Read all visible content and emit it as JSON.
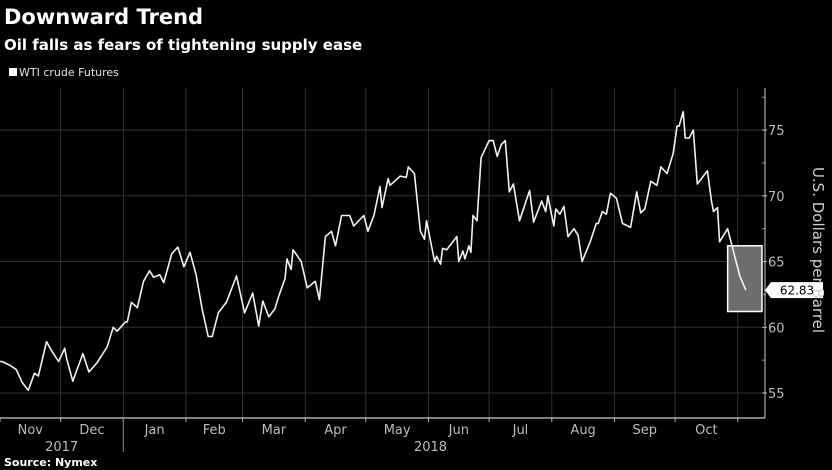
{
  "chart_data": {
    "type": "line",
    "title": "Downward Trend",
    "subtitle": "Oil falls as fears of tightening supply ease",
    "source": "Source: Nymex",
    "ylabel": "U.S. Dollars per Barrel",
    "xlabel": "",
    "ylim": [
      53.1,
      78.2
    ],
    "xlim": [
      "2017-11-01",
      "2018-11-13"
    ],
    "y_ticks": [
      55,
      60,
      65,
      70,
      75
    ],
    "y_axis_side": "right",
    "grid": true,
    "legend_placement": "top-left",
    "x_month_labels": [
      "Nov",
      "Dec",
      "Jan",
      "Feb",
      "Mar",
      "Apr",
      "May",
      "Jun",
      "Jul",
      "Aug",
      "Sep",
      "Oct"
    ],
    "x_year_labels": [
      "2017",
      "2018"
    ],
    "colors": {
      "background": "#000000",
      "line": "#ffffff",
      "grid": "#333333",
      "highlight": "#6e6e6e"
    },
    "last_value_label": "62.83",
    "highlight": {
      "x": [
        "2018-10-27",
        "2018-11-13"
      ],
      "y": [
        61.2,
        66.2
      ]
    },
    "series": [
      {
        "name": "WTI crude Futures",
        "x": [
          "2017-11-01",
          "2017-11-02",
          "2017-11-06",
          "2017-11-09",
          "2017-11-12",
          "2017-11-15",
          "2017-11-18",
          "2017-11-20",
          "2017-11-24",
          "2017-11-27",
          "2017-11-30",
          "2017-12-03",
          "2017-12-04",
          "2017-12-07",
          "2017-12-12",
          "2017-12-15",
          "2017-12-19",
          "2017-12-24",
          "2017-12-27",
          "2017-12-29",
          "2018-01-02",
          "2018-01-03",
          "2018-01-05",
          "2018-01-08",
          "2018-01-11",
          "2018-01-14",
          "2018-01-16",
          "2018-01-19",
          "2018-01-21",
          "2018-01-25",
          "2018-01-28",
          "2018-01-31",
          "2018-02-03",
          "2018-02-06",
          "2018-02-09",
          "2018-02-12",
          "2018-02-14",
          "2018-02-17",
          "2018-02-21",
          "2018-02-26",
          "2018-03-02",
          "2018-03-06",
          "2018-03-09",
          "2018-03-11",
          "2018-03-14",
          "2018-03-17",
          "2018-03-19",
          "2018-03-22",
          "2018-03-23",
          "2018-03-25",
          "2018-03-26",
          "2018-03-30",
          "2018-04-02",
          "2018-04-06",
          "2018-04-08",
          "2018-04-11",
          "2018-04-14",
          "2018-04-16",
          "2018-04-19",
          "2018-04-23",
          "2018-04-25",
          "2018-04-30",
          "2018-05-02",
          "2018-05-05",
          "2018-05-08",
          "2018-05-09",
          "2018-05-12",
          "2018-05-13",
          "2018-05-18",
          "2018-05-21",
          "2018-05-22",
          "2018-05-25",
          "2018-05-28",
          "2018-05-30",
          "2018-05-31",
          "2018-06-04",
          "2018-06-05",
          "2018-06-07",
          "2018-06-08",
          "2018-06-10",
          "2018-06-15",
          "2018-06-16",
          "2018-06-18",
          "2018-06-19",
          "2018-06-21",
          "2018-06-22",
          "2018-06-23",
          "2018-06-25",
          "2018-06-27",
          "2018-07-01",
          "2018-07-03",
          "2018-07-05",
          "2018-07-07",
          "2018-07-09",
          "2018-07-11",
          "2018-07-13",
          "2018-07-16",
          "2018-07-21",
          "2018-07-23",
          "2018-07-27",
          "2018-07-29",
          "2018-07-30",
          "2018-08-02",
          "2018-08-03",
          "2018-08-05",
          "2018-08-07",
          "2018-08-09",
          "2018-08-12",
          "2018-08-14",
          "2018-08-16",
          "2018-08-20",
          "2018-08-23",
          "2018-08-24",
          "2018-08-26",
          "2018-08-28",
          "2018-08-30",
          "2018-09-02",
          "2018-09-05",
          "2018-09-09",
          "2018-09-12",
          "2018-09-14",
          "2018-09-16",
          "2018-09-19",
          "2018-09-22",
          "2018-09-24",
          "2018-09-27",
          "2018-09-30",
          "2018-10-02",
          "2018-10-03",
          "2018-10-05",
          "2018-10-06",
          "2018-10-08",
          "2018-10-10",
          "2018-10-12",
          "2018-10-17",
          "2018-10-19",
          "2018-10-20",
          "2018-10-22",
          "2018-10-23",
          "2018-10-27",
          "2018-11-02",
          "2018-11-05"
        ],
        "values": [
          57.4,
          57.4,
          57.1,
          56.8,
          55.8,
          55.2,
          56.5,
          56.3,
          58.9,
          58.1,
          57.4,
          58.4,
          57.6,
          55.9,
          58.0,
          56.6,
          57.3,
          58.5,
          60.0,
          59.7,
          60.4,
          60.4,
          61.9,
          61.5,
          63.5,
          64.3,
          63.8,
          64.0,
          63.4,
          65.6,
          66.1,
          64.6,
          65.7,
          64.0,
          61.4,
          59.3,
          59.3,
          61.1,
          61.9,
          63.9,
          61.1,
          62.6,
          60.1,
          62.0,
          60.8,
          61.4,
          62.4,
          63.7,
          65.2,
          64.4,
          65.9,
          65.0,
          63.0,
          63.5,
          62.1,
          66.9,
          67.3,
          66.2,
          68.5,
          68.5,
          67.7,
          68.5,
          67.3,
          68.5,
          70.7,
          69.1,
          71.3,
          70.8,
          71.5,
          71.4,
          72.2,
          71.7,
          67.3,
          66.7,
          68.1,
          65.0,
          65.4,
          64.8,
          66.0,
          65.9,
          66.9,
          65.0,
          65.8,
          65.2,
          66.2,
          65.7,
          68.5,
          68.1,
          72.9,
          74.2,
          74.2,
          73.0,
          73.9,
          74.2,
          70.3,
          70.9,
          68.1,
          70.4,
          68.0,
          69.6,
          68.8,
          70.0,
          67.7,
          69.0,
          68.6,
          69.2,
          66.9,
          67.5,
          67.0,
          65.0,
          66.5,
          67.9,
          67.9,
          68.8,
          68.6,
          70.2,
          69.8,
          67.9,
          67.6,
          70.3,
          68.7,
          69.0,
          71.1,
          70.8,
          72.2,
          71.7,
          73.2,
          75.3,
          75.3,
          76.4,
          74.4,
          74.4,
          75.0,
          70.9,
          71.9,
          69.6,
          68.8,
          69.1,
          66.5,
          67.5,
          63.9,
          62.83
        ]
      }
    ]
  }
}
